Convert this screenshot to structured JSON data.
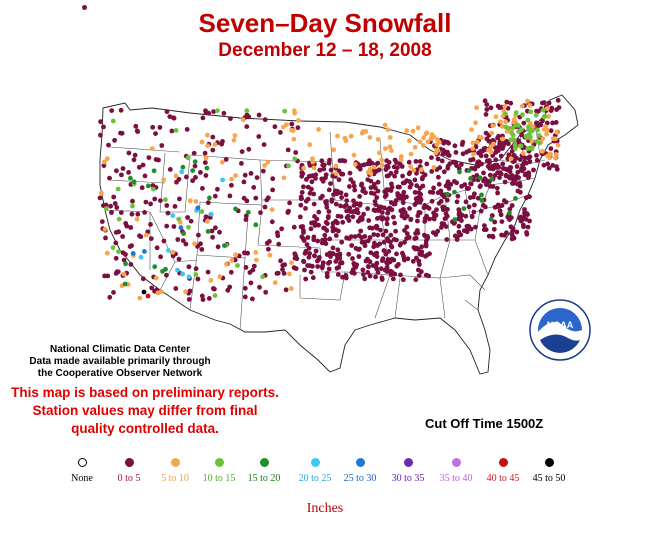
{
  "title": "Seven–Day Snowfall",
  "subtitle": "December 12 – 18, 2008",
  "credit": [
    "National Climatic Data Center",
    "Data made available primarily through",
    "the Cooperative Observer Network"
  ],
  "disclaimer": [
    "This map is based on preliminary reports.",
    "Station values may differ from final",
    "quality controlled data."
  ],
  "cutoff": "Cut Off Time 1500Z",
  "units": "Inches",
  "logo": {
    "text": "NOAA",
    "ring_text": "NATIONAL OCEANIC AND ATMOSPHERIC ADMINISTRATION · U.S. DEPARTMENT OF COMMERCE"
  },
  "legend": [
    {
      "label": "None",
      "color": "#ffffff",
      "text_color": "#000000"
    },
    {
      "label": "0 to 5",
      "color": "#7a0f40",
      "text_color": "#b0104a"
    },
    {
      "label": "5 to 10",
      "color": "#f7a64d",
      "text_color": "#f0a050"
    },
    {
      "label": "10 to 15",
      "color": "#6cc23a",
      "text_color": "#4cb030"
    },
    {
      "label": "15 to 20",
      "color": "#1f8f2a",
      "text_color": "#1a7a20"
    },
    {
      "label": "20 to 25",
      "color": "#3cc8f0",
      "text_color": "#20a8e0"
    },
    {
      "label": "25 to 30",
      "color": "#1f78d8",
      "text_color": "#2060c8"
    },
    {
      "label": "30 to 35",
      "color": "#6a2fa8",
      "text_color": "#7020b0"
    },
    {
      "label": "35 to 40",
      "color": "#c070e0",
      "text_color": "#c060e0"
    },
    {
      "label": "40 to 45",
      "color": "#c81010",
      "text_color": "#d01818"
    },
    {
      "label": "45 to 50",
      "color": "#000000",
      "text_color": "#000000"
    }
  ]
}
